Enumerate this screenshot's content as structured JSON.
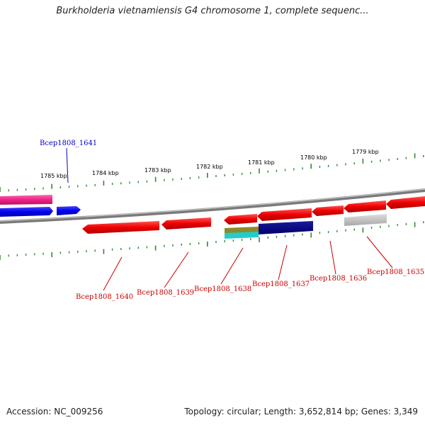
{
  "title": "Burkholderia vietnamiensis G4 chromosome 1, complete sequenc...",
  "footer": {
    "accession": "Accession: NC_009256",
    "info": "Topology: circular; Length: 3,652,814 bp; Genes: 3,349"
  },
  "scale_labels": [
    "1785 kbp",
    "1784 kbp",
    "1783 kbp",
    "1782 kbp",
    "1781 kbp",
    "1780 kbp",
    "1779 kbp"
  ],
  "gene_labels": [
    {
      "text": "Bcep1808_1641",
      "color": "#0000cc"
    },
    {
      "text": "Bcep1808_1640",
      "color": "#cc0000"
    },
    {
      "text": "Bcep1808_1639",
      "color": "#cc0000"
    },
    {
      "text": "Bcep1808_1638",
      "color": "#cc0000"
    },
    {
      "text": "Bcep1808_1637",
      "color": "#cc0000"
    },
    {
      "text": "Bcep1808_1636",
      "color": "#cc0000"
    },
    {
      "text": "Bcep1808_1635",
      "color": "#cc0000"
    }
  ],
  "colors": {
    "tick": "#2e8b2e",
    "backbone": "#808080",
    "gene_red": "#ee0000",
    "gene_blue": "#0000ee",
    "gene_pink": "#ee2288",
    "gene_navy": "#000080",
    "gene_olive": "#8a8a2a",
    "gene_cyan": "#22cccc",
    "gene_grey": "#b8b8b8"
  }
}
